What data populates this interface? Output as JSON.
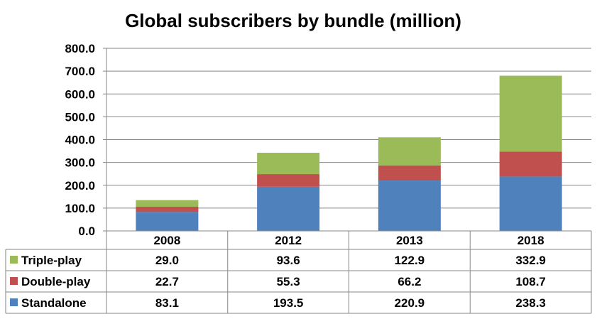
{
  "chart_data": {
    "type": "bar",
    "stacked": true,
    "title": "Global subscribers by bundle (million)",
    "xlabel": "",
    "ylabel": "",
    "categories": [
      "2008",
      "2012",
      "2013",
      "2018"
    ],
    "ylim": [
      0,
      800
    ],
    "yticks": [
      "0.0",
      "100.0",
      "200.0",
      "300.0",
      "400.0",
      "500.0",
      "600.0",
      "700.0",
      "800.0"
    ],
    "grid": true,
    "legend": "data-table-bottom",
    "series": [
      {
        "name": "Standalone",
        "color": "#4f81bd",
        "values": [
          83.1,
          193.5,
          220.9,
          238.3
        ],
        "labels": [
          "83.1",
          "193.5",
          "220.9",
          "238.3"
        ]
      },
      {
        "name": "Double-play",
        "color": "#c0504d",
        "values": [
          22.7,
          55.3,
          66.2,
          108.7
        ],
        "labels": [
          "22.7",
          "55.3",
          "66.2",
          "108.7"
        ]
      },
      {
        "name": "Triple-play",
        "color": "#9bbb59",
        "values": [
          29.0,
          93.6,
          122.9,
          332.9
        ],
        "labels": [
          "29.0",
          "93.6",
          "122.9",
          "332.9"
        ]
      }
    ],
    "table_row_order": [
      "Triple-play",
      "Double-play",
      "Standalone"
    ]
  }
}
